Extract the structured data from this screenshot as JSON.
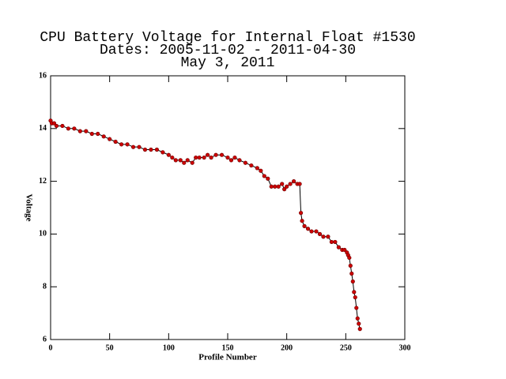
{
  "chart_data": {
    "type": "line",
    "title": [
      "CPU Battery Voltage for Internal Float #1530",
      "Dates:  2005-11-02 -  2011-04-30",
      "May  3, 2011"
    ],
    "xlabel": "Profile Number",
    "ylabel": "Voltage",
    "x": [
      0,
      1,
      3,
      5,
      10,
      15,
      20,
      25,
      30,
      35,
      40,
      45,
      50,
      55,
      60,
      65,
      70,
      75,
      80,
      85,
      90,
      95,
      100,
      103,
      106,
      110,
      113,
      116,
      120,
      123,
      126,
      130,
      133,
      136,
      140,
      145,
      150,
      153,
      156,
      160,
      165,
      170,
      175,
      178,
      181,
      184,
      187,
      190,
      193,
      196,
      198,
      200,
      203,
      206,
      209,
      211,
      212,
      213,
      215,
      218,
      221,
      225,
      228,
      231,
      235,
      238,
      241,
      244,
      247,
      249,
      251,
      252,
      253,
      254,
      255,
      256,
      257,
      258,
      259,
      260,
      261,
      262
    ],
    "series": [
      {
        "name": "Voltage",
        "color": "#cc0000",
        "line_color": "#000000",
        "values": [
          14.3,
          14.2,
          14.2,
          14.1,
          14.1,
          14.0,
          14.0,
          13.9,
          13.9,
          13.8,
          13.8,
          13.7,
          13.6,
          13.5,
          13.4,
          13.4,
          13.3,
          13.3,
          13.2,
          13.2,
          13.2,
          13.1,
          13.0,
          12.9,
          12.8,
          12.8,
          12.7,
          12.8,
          12.7,
          12.9,
          12.9,
          12.9,
          13.0,
          12.9,
          13.0,
          13.0,
          12.9,
          12.8,
          12.9,
          12.8,
          12.7,
          12.6,
          12.5,
          12.4,
          12.2,
          12.1,
          11.8,
          11.8,
          11.8,
          11.9,
          11.7,
          11.8,
          11.9,
          12.0,
          11.9,
          11.9,
          10.8,
          10.5,
          10.3,
          10.2,
          10.1,
          10.1,
          10.0,
          9.9,
          9.9,
          9.7,
          9.7,
          9.5,
          9.4,
          9.4,
          9.3,
          9.2,
          9.1,
          8.8,
          8.5,
          8.2,
          7.8,
          7.6,
          7.2,
          6.8,
          6.6,
          6.4
        ]
      }
    ],
    "xlim": [
      0,
      300
    ],
    "xticks": [
      0,
      50,
      100,
      150,
      200,
      250,
      300
    ],
    "ylim": [
      6,
      16
    ],
    "yticks": [
      6,
      8,
      10,
      12,
      14,
      16
    ]
  }
}
